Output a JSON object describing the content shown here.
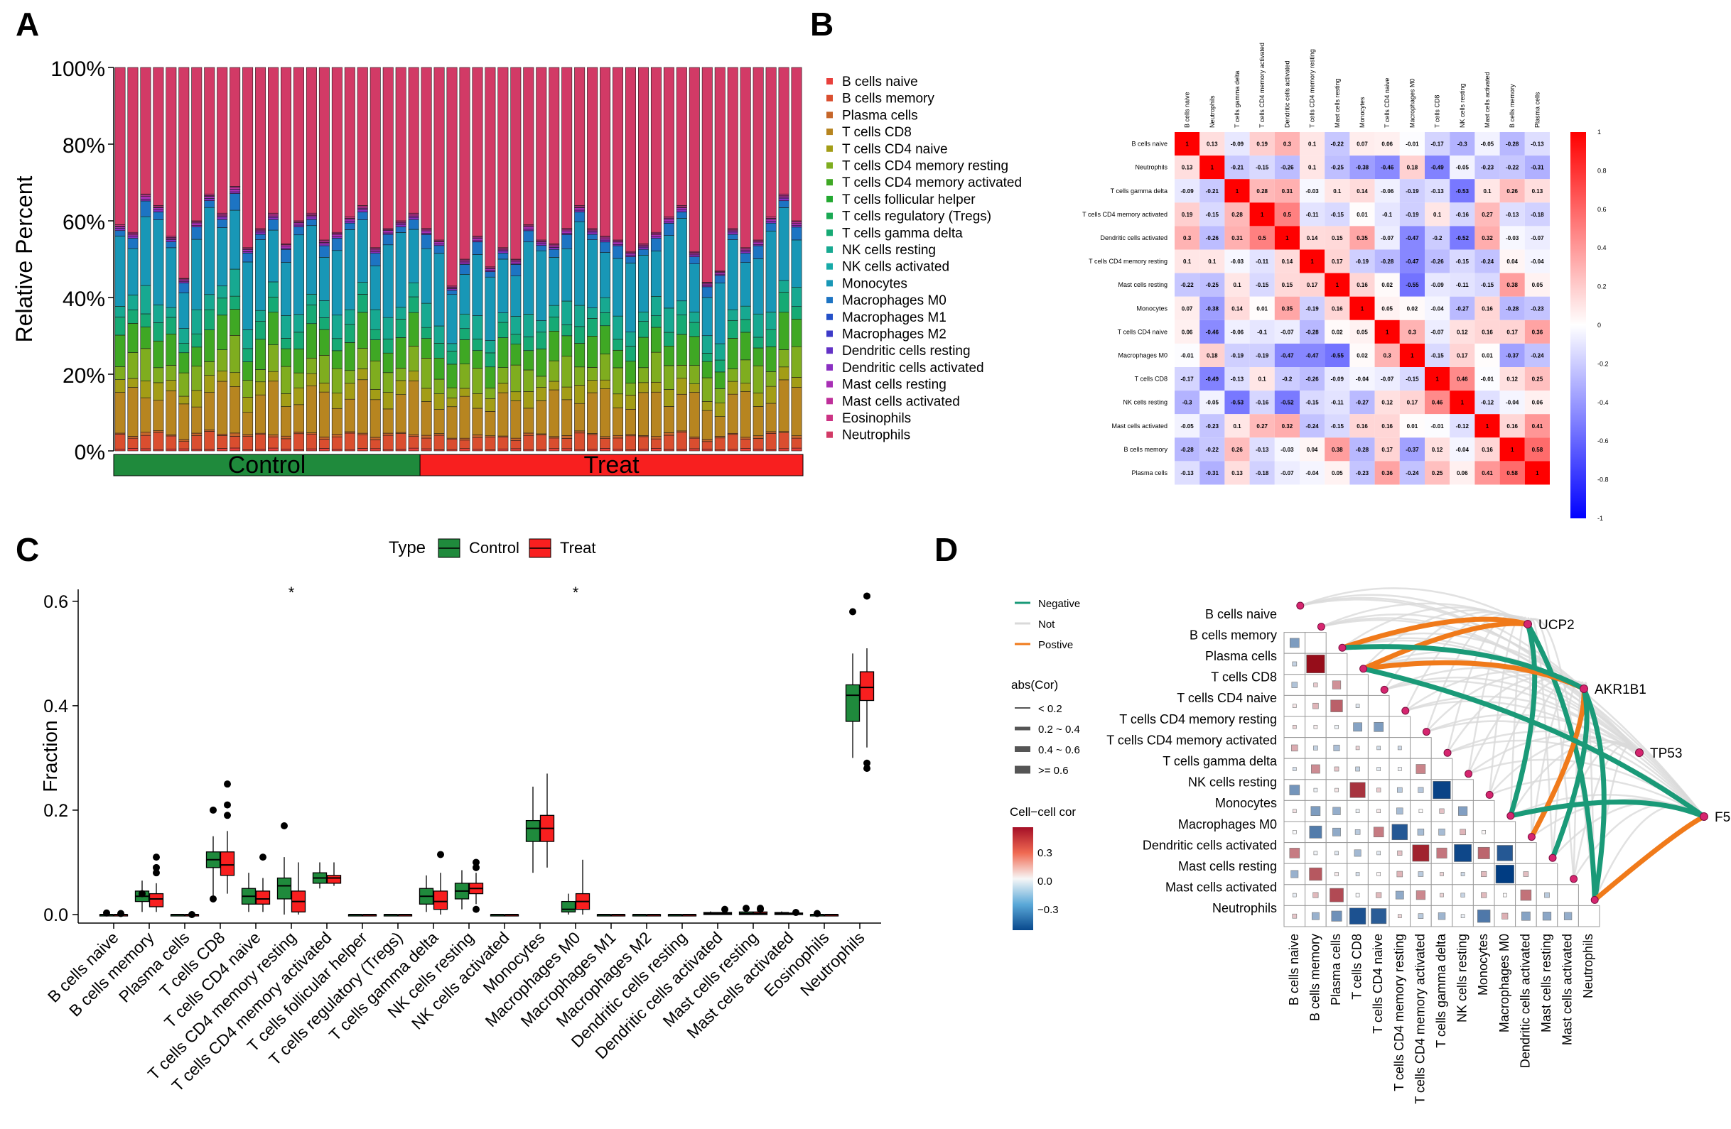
{
  "panels": {
    "a": "A",
    "b": "B",
    "c": "C",
    "d": "D"
  },
  "colors": {
    "control": "#1f8a3c",
    "treat": "#f81f1f",
    "neg_line": "#1a9a78",
    "pos_line": "#f07a1a",
    "not_line": "#d9d9d9",
    "corr_high": "#ff0000",
    "corr_low": "#0000ff",
    "node": "#d6256f"
  },
  "chart_data": [
    {
      "panel": "A",
      "type": "bar",
      "stacked": true,
      "ylabel": "Relative Percent",
      "yticks": [
        "0%",
        "20%",
        "40%",
        "60%",
        "80%",
        "100%"
      ],
      "groups": [
        {
          "name": "Control",
          "count": 24
        },
        {
          "name": "Treat",
          "count": 30
        }
      ],
      "legend": [
        "B cells naive",
        "B cells memory",
        "Plasma cells",
        "T cells CD8",
        "T cells CD4 naive",
        "T cells CD4 memory resting",
        "T cells CD4 memory activated",
        "T cells follicular helper",
        "T cells regulatory (Tregs)",
        "T cells gamma delta",
        "NK cells resting",
        "NK cells activated",
        "Monocytes",
        "Macrophages M0",
        "Macrophages M1",
        "Macrophages M2",
        "Dendritic cells resting",
        "Dendritic cells activated",
        "Mast cells resting",
        "Mast cells activated",
        "Eosinophils",
        "Neutrophils"
      ],
      "legend_colors": [
        "#e8403c",
        "#da4e2f",
        "#c6662a",
        "#b78520",
        "#a39d16",
        "#7fad1f",
        "#3fa824",
        "#22a830",
        "#1aa953",
        "#16aa74",
        "#17a991",
        "#17aaa8",
        "#1897b6",
        "#1d74c3",
        "#2450c8",
        "#3d3ac8",
        "#6332c6",
        "#8a2fc2",
        "#a82fb5",
        "#be2f9a",
        "#cc3384",
        "#d23a66"
      ],
      "category_colors": [
        "#e8403c",
        "#da4e2f",
        "#c6662a",
        "#b78520",
        "#a39d16",
        "#7fad1f",
        "#3fa824",
        "#22a830",
        "#1aa953",
        "#16aa74",
        "#17a991",
        "#17aaa8",
        "#1897b6",
        "#1d74c3",
        "#2450c8",
        "#3d3ac8",
        "#6332c6",
        "#8a2fc2",
        "#a82fb5",
        "#be2f9a",
        "#cc3384",
        "#d23a66"
      ],
      "mean_composition": [
        0.005,
        0.035,
        0.005,
        0.1,
        0.035,
        0.055,
        0.07,
        0.0,
        0.0,
        0.04,
        0.045,
        0.0,
        0.17,
        0.025,
        0.0,
        0.0,
        0.0,
        0.005,
        0.005,
        0.003,
        0.003,
        0.4
      ],
      "sample_neutrophils": [
        0.41,
        0.43,
        0.33,
        0.36,
        0.44,
        0.55,
        0.4,
        0.33,
        0.38,
        0.31,
        0.47,
        0.42,
        0.38,
        0.46,
        0.4,
        0.38,
        0.45,
        0.43,
        0.39,
        0.36,
        0.47,
        0.42,
        0.4,
        0.38,
        0.42,
        0.45,
        0.57,
        0.5,
        0.44,
        0.52,
        0.47,
        0.5,
        0.41,
        0.45,
        0.46,
        0.42,
        0.36,
        0.42,
        0.44,
        0.45,
        0.48,
        0.46,
        0.43,
        0.39,
        0.36,
        0.48,
        0.56,
        0.53,
        0.42,
        0.47,
        0.45,
        0.39,
        0.33,
        0.4
      ]
    },
    {
      "panel": "B",
      "type": "heatmap",
      "labels": [
        "B cells naive",
        "Neutrophils",
        "T cells gamma delta",
        "T cells CD4 memory activated",
        "Dendritic cells activated",
        "T cells CD4 memory resting",
        "Mast cells resting",
        "Monocytes",
        "T cells CD4 naive",
        "Macrophages M0",
        "T cells CD8",
        "NK cells resting",
        "Mast cells activated",
        "B cells memory",
        "Plasma cells"
      ],
      "values": [
        [
          1.0,
          0.13,
          -0.09,
          0.19,
          0.3,
          0.1,
          -0.22,
          0.07,
          0.06,
          -0.01,
          -0.17,
          -0.3,
          -0.05,
          -0.28,
          -0.13
        ],
        [
          0.13,
          1.0,
          -0.21,
          -0.15,
          -0.26,
          0.1,
          -0.25,
          -0.38,
          -0.46,
          0.18,
          -0.49,
          -0.05,
          -0.23,
          -0.22,
          -0.31
        ],
        [
          -0.09,
          -0.21,
          1.0,
          0.28,
          0.31,
          -0.03,
          0.1,
          0.14,
          -0.06,
          -0.19,
          -0.13,
          -0.53,
          0.1,
          0.26,
          0.13
        ],
        [
          0.19,
          -0.15,
          0.28,
          1.0,
          0.5,
          -0.11,
          -0.15,
          0.01,
          -0.1,
          -0.19,
          0.1,
          -0.16,
          0.27,
          -0.13,
          -0.18
        ],
        [
          0.3,
          -0.26,
          0.31,
          0.5,
          1.0,
          0.14,
          0.15,
          0.35,
          -0.07,
          -0.47,
          -0.2,
          -0.52,
          0.32,
          -0.03,
          -0.07
        ],
        [
          0.1,
          0.1,
          -0.03,
          -0.11,
          0.14,
          1.0,
          0.17,
          -0.19,
          -0.28,
          -0.47,
          -0.26,
          -0.15,
          -0.24,
          0.04,
          -0.04
        ],
        [
          -0.22,
          -0.25,
          0.1,
          -0.15,
          0.15,
          0.17,
          1.0,
          0.16,
          0.02,
          -0.55,
          -0.09,
          -0.11,
          -0.15,
          0.38,
          0.05
        ],
        [
          0.07,
          -0.38,
          0.14,
          0.01,
          0.35,
          -0.19,
          0.16,
          1.0,
          0.05,
          0.02,
          -0.04,
          -0.27,
          0.16,
          -0.28,
          -0.23
        ],
        [
          0.06,
          -0.46,
          -0.06,
          -0.1,
          -0.07,
          -0.28,
          0.02,
          0.05,
          1.0,
          0.3,
          -0.07,
          0.12,
          0.16,
          0.17,
          0.36
        ],
        [
          -0.01,
          0.18,
          -0.19,
          -0.19,
          -0.47,
          -0.47,
          -0.55,
          0.02,
          0.3,
          1.0,
          -0.15,
          0.17,
          0.01,
          -0.37,
          -0.24
        ],
        [
          -0.17,
          -0.49,
          -0.13,
          0.1,
          -0.2,
          -0.26,
          -0.09,
          -0.04,
          -0.07,
          -0.15,
          1.0,
          0.46,
          -0.01,
          0.12,
          0.25
        ],
        [
          -0.3,
          -0.05,
          -0.53,
          -0.16,
          -0.52,
          -0.15,
          -0.11,
          -0.27,
          0.12,
          0.17,
          0.46,
          1.0,
          -0.12,
          -0.04,
          0.06
        ],
        [
          -0.05,
          -0.23,
          0.1,
          0.27,
          0.32,
          -0.24,
          -0.15,
          0.16,
          0.16,
          0.01,
          -0.01,
          -0.12,
          1.0,
          0.16,
          0.41
        ],
        [
          -0.28,
          -0.22,
          0.26,
          -0.13,
          -0.03,
          0.04,
          0.38,
          -0.28,
          0.17,
          -0.37,
          0.12,
          -0.04,
          0.16,
          1.0,
          0.58
        ],
        [
          -0.13,
          -0.31,
          0.13,
          -0.18,
          -0.07,
          -0.04,
          0.05,
          -0.23,
          0.36,
          -0.24,
          0.25,
          0.06,
          0.41,
          0.58,
          1.0
        ]
      ],
      "colorbar_ticks": [
        "1",
        "0.8",
        "0.6",
        "0.4",
        "0.2",
        "0",
        "-0.2",
        "-0.4",
        "-0.6",
        "-0.8",
        "-1"
      ]
    },
    {
      "panel": "C",
      "type": "boxplot",
      "title": "Type",
      "legend": [
        "Control",
        "Treat"
      ],
      "ylabel": "Fraction",
      "yticks": [
        "0.0",
        "0.2",
        "0.4",
        "0.6"
      ],
      "ylim": [
        0,
        0.62
      ],
      "categories": [
        "B cells naive",
        "B cells memory",
        "Plasma cells",
        "T cells CD8",
        "T cells CD4 naive",
        "T cells CD4 memory resting",
        "T cells CD4 memory activated",
        "T cells follicular helper",
        "T cells regulatory (Tregs)",
        "T cells gamma delta",
        "NK cells resting",
        "NK cells activated",
        "Monocytes",
        "Macrophages M0",
        "Macrophages M1",
        "Macrophages M2",
        "Dendritic cells resting",
        "Dendritic cells activated",
        "Mast cells resting",
        "Mast cells activated",
        "Eosinophils",
        "Neutrophils"
      ],
      "significance": [
        "",
        "",
        "",
        "",
        "",
        "*",
        "",
        "",
        "",
        "",
        "",
        "",
        "",
        "*",
        "",
        "",
        "",
        "",
        "",
        "",
        "",
        ""
      ],
      "control": [
        [
          0,
          0,
          0,
          0,
          0,
          [
            0.003
          ]
        ],
        [
          0.005,
          0.025,
          0.035,
          0.045,
          0.065,
          [
            0.04
          ]
        ],
        [
          0,
          0,
          0,
          0,
          0,
          []
        ],
        [
          0.03,
          0.09,
          0.105,
          0.12,
          0.15,
          [
            0.2,
            0.03
          ]
        ],
        [
          0.005,
          0.02,
          0.035,
          0.05,
          0.08,
          []
        ],
        [
          0.0,
          0.03,
          0.055,
          0.07,
          0.11,
          [
            0.17
          ]
        ],
        [
          0.05,
          0.06,
          0.07,
          0.08,
          0.1,
          []
        ],
        [
          0,
          0,
          0,
          0,
          0,
          []
        ],
        [
          0,
          0,
          0,
          0,
          0,
          []
        ],
        [
          0.005,
          0.02,
          0.035,
          0.05,
          0.075,
          []
        ],
        [
          0.01,
          0.03,
          0.045,
          0.06,
          0.085,
          []
        ],
        [
          0,
          0,
          0,
          0,
          0,
          []
        ],
        [
          0.08,
          0.14,
          0.165,
          0.18,
          0.245,
          []
        ],
        [
          0.0,
          0.005,
          0.01,
          0.025,
          0.04,
          []
        ],
        [
          0,
          0,
          0,
          0,
          0,
          []
        ],
        [
          0,
          0,
          0,
          0,
          0,
          []
        ],
        [
          0,
          0,
          0,
          0,
          0,
          []
        ],
        [
          0,
          0,
          0.002,
          0.004,
          0.006,
          []
        ],
        [
          0,
          0,
          0.002,
          0.005,
          0.008,
          [
            0.012
          ]
        ],
        [
          0,
          0,
          0.002,
          0.004,
          0.006,
          []
        ],
        [
          0,
          0,
          0,
          0,
          0,
          [
            0.002
          ]
        ],
        [
          0.3,
          0.37,
          0.42,
          0.44,
          0.5,
          [
            0.58
          ]
        ]
      ],
      "treat": [
        [
          0,
          0,
          0,
          0,
          0,
          [
            0.002
          ]
        ],
        [
          0.005,
          0.015,
          0.03,
          0.04,
          0.06,
          [
            0.11,
            0.09,
            0.08
          ]
        ],
        [
          0,
          0,
          0,
          0,
          0,
          [
            0.0
          ]
        ],
        [
          0.04,
          0.075,
          0.095,
          0.12,
          0.16,
          [
            0.25,
            0.21,
            0.19
          ]
        ],
        [
          0.005,
          0.02,
          0.03,
          0.045,
          0.07,
          [
            0.11
          ]
        ],
        [
          0.0,
          0.005,
          0.025,
          0.045,
          0.1,
          []
        ],
        [
          0.055,
          0.06,
          0.07,
          0.075,
          0.1,
          []
        ],
        [
          0,
          0,
          0,
          0,
          0,
          []
        ],
        [
          0,
          0,
          0,
          0,
          0,
          []
        ],
        [
          0.0,
          0.01,
          0.025,
          0.045,
          0.08,
          [
            0.115
          ]
        ],
        [
          0.02,
          0.04,
          0.05,
          0.06,
          0.08,
          [
            0.1,
            0.09,
            0.01
          ]
        ],
        [
          0,
          0,
          0,
          0,
          0,
          []
        ],
        [
          0.09,
          0.14,
          0.165,
          0.19,
          0.27,
          []
        ],
        [
          0.0,
          0.01,
          0.025,
          0.04,
          0.105,
          []
        ],
        [
          0,
          0,
          0,
          0,
          0,
          []
        ],
        [
          0,
          0,
          0,
          0,
          0,
          []
        ],
        [
          0,
          0,
          0,
          0,
          0,
          []
        ],
        [
          0,
          0,
          0.002,
          0.004,
          0.006,
          [
            0.01
          ]
        ],
        [
          0,
          0,
          0.002,
          0.005,
          0.008,
          [
            0.012,
            0.01
          ]
        ],
        [
          0,
          0,
          0.002,
          0.003,
          0.004,
          [
            0.004
          ]
        ],
        [
          0,
          0,
          0,
          0,
          0,
          []
        ],
        [
          0.32,
          0.41,
          0.435,
          0.465,
          0.51,
          [
            0.61,
            0.29,
            0.28
          ]
        ]
      ]
    },
    {
      "panel": "D",
      "type": "heatmap",
      "subtype": "correlation network",
      "cells": [
        "B cells naive",
        "B cells memory",
        "Plasma cells",
        "T cells CD8",
        "T cells CD4 naive",
        "T cells CD4 memory resting",
        "T cells CD4 memory activated",
        "T cells gamma delta",
        "NK cells resting",
        "Monocytes",
        "Macrophages M0",
        "Dendritic cells activated",
        "Mast cells resting",
        "Mast cells activated",
        "Neutrophils"
      ],
      "genes": [
        "UCP2",
        "AKR1B1",
        "TP53",
        "F5"
      ],
      "legend_lines": [
        "Negative",
        "Not",
        "Postive"
      ],
      "abs_title": "abs(Cor)",
      "abs_levels": [
        "< 0.2",
        "0.2 ~ 0.4",
        "0.4 ~ 0.6",
        ">= 0.6"
      ],
      "colorbar_title": "Cell−cell cor",
      "colorbar_ticks": [
        "0.3",
        "0.0",
        "−0.3"
      ],
      "matrix_lower": [
        [],
        [
          -0.28
        ],
        [
          -0.13,
          0.58
        ],
        [
          -0.17,
          0.12,
          0.25
        ],
        [
          0.06,
          0.17,
          0.36,
          -0.07
        ],
        [
          0.1,
          0.04,
          -0.04,
          -0.26,
          -0.28
        ],
        [
          0.19,
          -0.13,
          -0.18,
          0.1,
          -0.1,
          -0.11
        ],
        [
          -0.09,
          0.26,
          0.13,
          -0.13,
          -0.06,
          -0.03,
          0.28
        ],
        [
          -0.3,
          -0.04,
          0.06,
          0.46,
          0.12,
          -0.15,
          -0.16,
          -0.53
        ],
        [
          0.07,
          -0.28,
          -0.23,
          -0.04,
          0.05,
          -0.19,
          0.01,
          0.14,
          -0.27
        ],
        [
          -0.01,
          -0.37,
          -0.24,
          -0.15,
          0.3,
          -0.47,
          -0.19,
          -0.19,
          0.17,
          0.02
        ],
        [
          0.3,
          -0.03,
          -0.07,
          -0.2,
          -0.07,
          0.14,
          0.5,
          0.31,
          -0.52,
          0.35,
          -0.47
        ],
        [
          -0.22,
          0.38,
          0.05,
          -0.09,
          0.02,
          0.17,
          -0.15,
          0.1,
          -0.11,
          0.16,
          -0.55,
          0.15
        ],
        [
          -0.05,
          0.16,
          0.41,
          -0.01,
          0.16,
          -0.24,
          0.27,
          0.1,
          -0.12,
          0.16,
          0.01,
          0.32,
          -0.15
        ],
        [
          0.13,
          -0.22,
          -0.31,
          -0.49,
          -0.46,
          0.1,
          -0.15,
          -0.21,
          -0.05,
          -0.38,
          0.18,
          -0.26,
          -0.25,
          -0.23
        ]
      ],
      "links": [
        {
          "gene": "UCP2",
          "cell": "Plasma cells",
          "type": "pos"
        },
        {
          "gene": "UCP2",
          "cell": "T cells CD8",
          "type": "pos"
        },
        {
          "gene": "UCP2",
          "cell": "Macrophages M0",
          "type": "neg"
        },
        {
          "gene": "UCP2",
          "cell": "Neutrophils",
          "type": "neg"
        },
        {
          "gene": "AKR1B1",
          "cell": "T cells CD8",
          "type": "pos"
        },
        {
          "gene": "AKR1B1",
          "cell": "Plasma cells",
          "type": "neg"
        },
        {
          "gene": "AKR1B1",
          "cell": "Dendritic cells activated",
          "type": "pos"
        },
        {
          "gene": "AKR1B1",
          "cell": "Mast cells resting",
          "type": "neg"
        },
        {
          "gene": "AKR1B1",
          "cell": "Neutrophils",
          "type": "neg"
        },
        {
          "gene": "F5",
          "cell": "T cells CD8",
          "type": "neg"
        },
        {
          "gene": "F5",
          "cell": "Neutrophils",
          "type": "pos"
        },
        {
          "gene": "F5",
          "cell": "Macrophages M0",
          "type": "neg"
        }
      ]
    }
  ]
}
